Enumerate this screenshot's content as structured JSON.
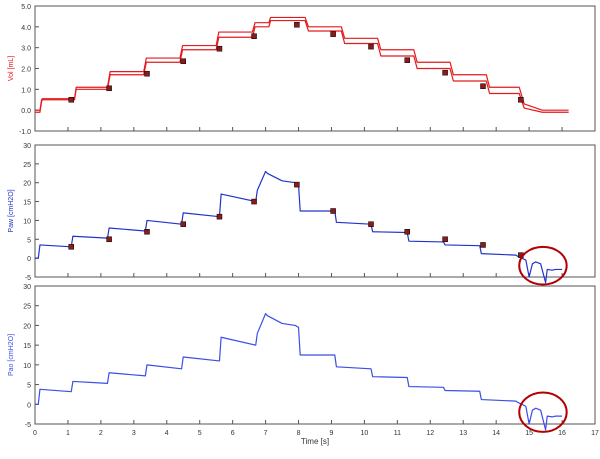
{
  "chart_data": [
    {
      "type": "line",
      "ylabel": "Vol [mL]",
      "ylim": [
        -1.0,
        5.0
      ],
      "yticks": [
        "-1.0",
        "0.0",
        "1.0",
        "2.0",
        "3.0",
        "4.0",
        "5.0"
      ],
      "color": "#e41a1c",
      "marker_color": "#8b1a1a",
      "series": [
        {
          "x": [
            0.0,
            0.15,
            0.2,
            0.22,
            1.2,
            1.25,
            2.2,
            2.28,
            3.3,
            3.38,
            4.4,
            4.48,
            5.5,
            5.58,
            6.6,
            6.68,
            7.1,
            7.15,
            8.2,
            8.3,
            9.3,
            9.4,
            10.4,
            10.5,
            11.5,
            11.6,
            12.6,
            12.7,
            13.7,
            13.8,
            14.7,
            14.85,
            15.4,
            16.2
          ],
          "y": [
            -0.1,
            -0.1,
            0.4,
            0.5,
            0.5,
            1.0,
            1.0,
            1.7,
            1.7,
            2.3,
            2.3,
            2.9,
            2.9,
            3.5,
            3.5,
            4.0,
            4.0,
            4.3,
            4.3,
            3.8,
            3.8,
            3.2,
            3.2,
            2.6,
            2.6,
            2.0,
            2.0,
            1.4,
            1.4,
            0.8,
            0.8,
            0.1,
            -0.1,
            -0.1
          ]
        },
        {
          "x": [
            0.0,
            0.15,
            0.2,
            0.22,
            1.2,
            1.25,
            2.2,
            2.28,
            3.3,
            3.38,
            4.4,
            4.48,
            5.5,
            5.58,
            6.6,
            6.68,
            7.1,
            7.15,
            8.2,
            8.3,
            9.3,
            9.4,
            10.4,
            10.5,
            11.5,
            11.6,
            12.6,
            12.7,
            13.7,
            13.8,
            14.7,
            14.85,
            15.4,
            16.2
          ],
          "y": [
            0.0,
            0.0,
            0.5,
            0.55,
            0.55,
            1.1,
            1.1,
            1.85,
            1.85,
            2.5,
            2.5,
            3.1,
            3.1,
            3.75,
            3.75,
            4.2,
            4.2,
            4.45,
            4.45,
            4.0,
            4.0,
            3.45,
            3.45,
            2.9,
            2.9,
            2.3,
            2.3,
            1.7,
            1.7,
            1.1,
            1.1,
            0.3,
            0.0,
            0.0
          ]
        }
      ],
      "markers": {
        "x": [
          1.1,
          2.25,
          3.4,
          4.5,
          5.6,
          6.65,
          7.95,
          9.05,
          10.2,
          11.3,
          12.45,
          13.6,
          14.75
        ],
        "y": [
          0.5,
          1.05,
          1.75,
          2.35,
          2.95,
          3.55,
          4.1,
          3.65,
          3.05,
          2.4,
          1.8,
          1.15,
          0.5
        ]
      }
    },
    {
      "type": "line",
      "ylabel": "Paw [cmH2O]",
      "ylim": [
        -5,
        30
      ],
      "yticks": [
        "-5",
        "0",
        "5",
        "10",
        "15",
        "20",
        "25",
        "30"
      ],
      "color": "#2233cc",
      "marker_color": "#8b1a1a",
      "series": [
        {
          "x": [
            0.0,
            0.1,
            0.15,
            1.1,
            1.15,
            2.2,
            2.25,
            3.35,
            3.4,
            4.45,
            4.5,
            5.6,
            5.65,
            6.7,
            6.75,
            7.0,
            7.05,
            7.5,
            7.9,
            8.0,
            8.05,
            9.1,
            9.15,
            10.2,
            10.25,
            11.3,
            11.35,
            12.4,
            12.45,
            13.5,
            13.55,
            14.6,
            14.65,
            14.9,
            15.0,
            15.1,
            15.2,
            15.35,
            15.5,
            15.55,
            15.7,
            15.8,
            16.0
          ],
          "y": [
            0,
            0,
            3.5,
            3.0,
            5.8,
            5.3,
            8.0,
            7.2,
            10.0,
            9.0,
            12.0,
            11.0,
            17.0,
            15.0,
            18.0,
            23.0,
            22.5,
            20.5,
            20.0,
            19.5,
            12.5,
            12.5,
            9.5,
            9.0,
            7.0,
            6.8,
            4.5,
            4.3,
            3.5,
            3.3,
            1.2,
            0.8,
            0.5,
            -0.5,
            -5.0,
            -1.5,
            -1.0,
            -1.5,
            -6.5,
            -3.0,
            -3.2,
            -3.0,
            -3.0
          ]
        }
      ],
      "markers": {
        "x": [
          1.1,
          2.25,
          3.4,
          4.5,
          5.6,
          6.65,
          7.95,
          9.05,
          10.2,
          11.3,
          12.45,
          13.6,
          14.75
        ],
        "y": [
          3,
          5,
          7,
          9,
          11,
          15,
          19.5,
          12.5,
          9,
          7,
          5,
          3.5,
          0.8
        ]
      },
      "annotation": {
        "shape": "ellipse",
        "cx": 15.42,
        "cy": -2.0,
        "rx": 0.72,
        "ry": 5.0,
        "color": "#b30000"
      }
    },
    {
      "type": "line",
      "ylabel": "Pao [cmH2O]",
      "xlabel": "Time [s]",
      "xlim": [
        0,
        17
      ],
      "xticks": [
        "0",
        "1",
        "2",
        "3",
        "4",
        "5",
        "6",
        "7",
        "8",
        "9",
        "10",
        "11",
        "12",
        "13",
        "14",
        "15",
        "16",
        "17"
      ],
      "ylim": [
        -5,
        30
      ],
      "yticks": [
        "-5",
        "0",
        "5",
        "10",
        "15",
        "20",
        "25",
        "30"
      ],
      "color": "#3b4ee6",
      "series": [
        {
          "x": [
            0.0,
            0.1,
            0.15,
            1.1,
            1.15,
            2.2,
            2.25,
            3.35,
            3.4,
            4.45,
            4.5,
            5.6,
            5.65,
            6.7,
            6.75,
            7.0,
            7.05,
            7.5,
            7.9,
            8.0,
            8.05,
            9.1,
            9.15,
            10.2,
            10.25,
            11.3,
            11.35,
            12.4,
            12.45,
            13.5,
            13.55,
            14.6,
            14.65,
            14.9,
            15.0,
            15.1,
            15.2,
            15.35,
            15.5,
            15.55,
            15.7,
            15.8,
            16.0
          ],
          "y": [
            0,
            0,
            3.8,
            3.2,
            5.8,
            5.3,
            8.0,
            7.2,
            10.0,
            9.0,
            12.0,
            11.0,
            17.0,
            15.0,
            18.0,
            23.0,
            22.5,
            20.5,
            20.0,
            19.5,
            12.5,
            12.5,
            9.5,
            9.0,
            7.0,
            6.8,
            4.5,
            4.3,
            3.5,
            3.3,
            1.2,
            0.8,
            0.5,
            -0.5,
            -5.0,
            -1.5,
            -1.0,
            -1.5,
            -6.5,
            -3.0,
            -3.2,
            -3.0,
            -3.0
          ]
        }
      ],
      "annotation": {
        "shape": "ellipse",
        "cx": 15.42,
        "cy": -2.0,
        "rx": 0.72,
        "ry": 5.0,
        "color": "#b30000"
      }
    }
  ]
}
